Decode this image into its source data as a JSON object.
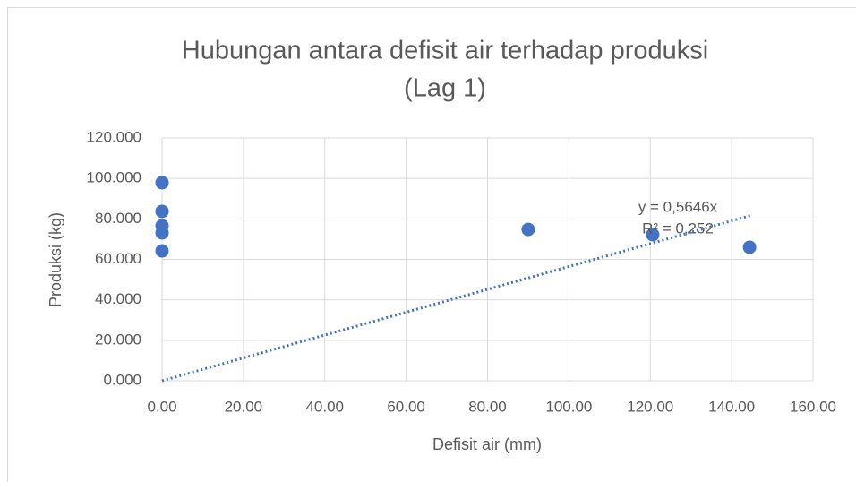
{
  "chart_data": {
    "type": "scatter",
    "title": [
      "Hubungan antara defisit air terhadap produksi",
      "(Lag 1)"
    ],
    "x_label": "Defisit air (mm)",
    "y_label": "Produksi (kg)",
    "x": [
      0,
      0,
      0,
      0,
      0,
      90,
      120.6,
      144.4
    ],
    "values": [
      97.9,
      83.7,
      76.6,
      73.1,
      64.2,
      74.8,
      72.2,
      66.0
    ],
    "color": "#4472c4",
    "xlim": [
      0,
      160
    ],
    "xticks": [
      {
        "value": 0,
        "label": "0.00"
      },
      {
        "value": 20,
        "label": "20.00"
      },
      {
        "value": 40,
        "label": "40.00"
      },
      {
        "value": 60,
        "label": "60.00"
      },
      {
        "value": 80,
        "label": "80.00"
      },
      {
        "value": 100,
        "label": "100.00"
      },
      {
        "value": 120,
        "label": "120.00"
      },
      {
        "value": 140,
        "label": "140.00"
      },
      {
        "value": 160,
        "label": "160.00"
      }
    ],
    "ylim": [
      0,
      120
    ],
    "yticks": [
      {
        "value": 0,
        "label": "0.000"
      },
      {
        "value": 20,
        "label": "20.000"
      },
      {
        "value": 40,
        "label": "40.000"
      },
      {
        "value": 60,
        "label": "60.000"
      },
      {
        "value": 80,
        "label": "80.000"
      },
      {
        "value": 100,
        "label": "100.000"
      },
      {
        "value": 120,
        "label": "120.000"
      }
    ],
    "grid": true,
    "trendline": {
      "slope": 0.5646,
      "x_end": 145,
      "equation": "y = 0,5646x",
      "r_squared": "R² = 0,252"
    }
  }
}
